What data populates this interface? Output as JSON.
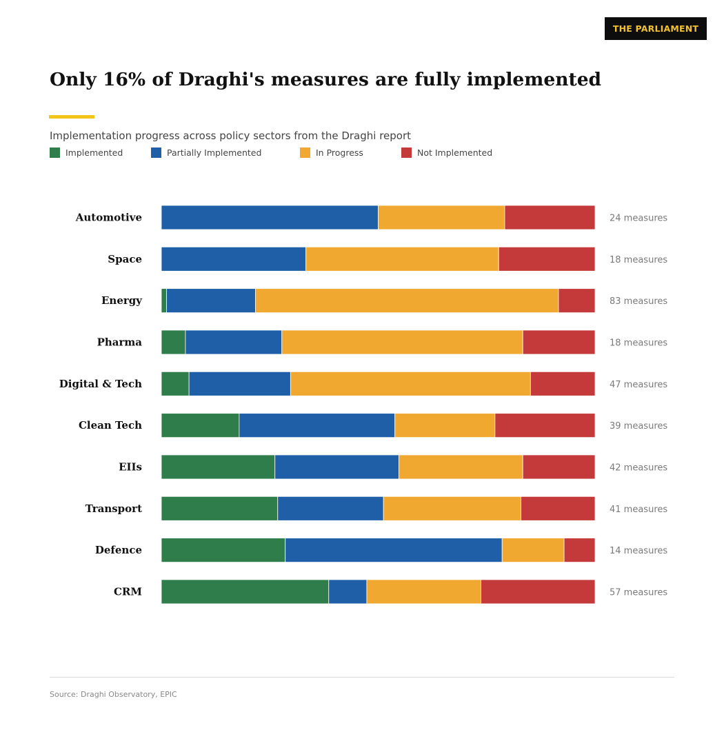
{
  "brand": {
    "label": "THE PARLIAMENT"
  },
  "header": {
    "title": "Only 16% of Draghi's measures are fully implemented",
    "subtitle": "Implementation progress across policy sectors from the Draghi report"
  },
  "footer": {
    "source": "Source: Draghi Observatory, EPIC"
  },
  "colors": {
    "implemented": "#2e7d4a",
    "partially_implemented": "#1f5fa8",
    "in_progress": "#f0a830",
    "not_implemented": "#c43a3a",
    "accent": "#f2c518"
  },
  "chart_data": {
    "type": "bar",
    "orientation": "horizontal",
    "stacked": true,
    "normalized": true,
    "title": "Only 16% of Draghi's measures are fully implemented",
    "subtitle": "Implementation progress across policy sectors from the Draghi report",
    "legend_position": "top-left",
    "grid": false,
    "categories": [
      "Automotive",
      "Space",
      "Energy",
      "Pharma",
      "Digital & Tech",
      "Clean Tech",
      "EIIs",
      "Transport",
      "Defence",
      "CRM"
    ],
    "counts": [
      "24 measures",
      "18 measures",
      "83 measures",
      "18 measures",
      "47 measures",
      "39 measures",
      "42 measures",
      "41 measures",
      "14 measures",
      "57 measures"
    ],
    "series": [
      {
        "name": "Implemented",
        "color": "#2e7d4a",
        "values": [
          0,
          0,
          1,
          1,
          3,
          7,
          11,
          11,
          4,
          22
        ]
      },
      {
        "name": "Partially Implemented",
        "color": "#1f5fa8",
        "values": [
          12,
          6,
          17,
          4,
          11,
          14,
          12,
          10,
          7,
          5
        ]
      },
      {
        "name": "In Progress",
        "color": "#f0a830",
        "values": [
          7,
          8,
          58,
          10,
          26,
          9,
          12,
          13,
          2,
          15
        ]
      },
      {
        "name": "Not Implemented",
        "color": "#c43a3a",
        "values": [
          5,
          4,
          7,
          3,
          7,
          9,
          7,
          7,
          1,
          15
        ]
      }
    ]
  }
}
